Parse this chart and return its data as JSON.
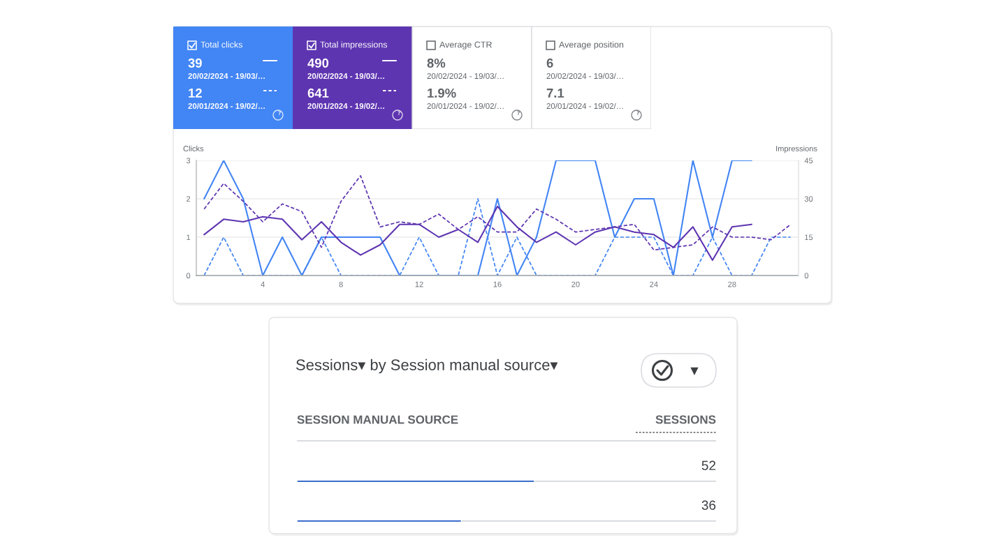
{
  "chart_data": [
    {
      "type": "other",
      "annotations": [
        "Total clicks",
        "39",
        "20/02/2024 - 19/03/…",
        "12",
        "20/01/2024 - 19/02/…",
        "Total impressions",
        "490",
        "20/02/2024 - 19/03/…",
        "641",
        "20/01/2024 - 19/02/…",
        "Average CTR",
        "8%",
        "20/02/2024 - 19/03/…",
        "1.9%",
        "20/01/2024 - 19/02/…",
        "Average position",
        "6",
        "20/02/2024 - 19/03/…",
        "7.1",
        "20/01/2024 - 19/02/…"
      ]
    },
    {
      "type": "line",
      "ylabel": "Clicks",
      "y2label": "Impressions",
      "xlim": [
        0.6,
        31.4
      ],
      "xticks": [
        4,
        8,
        12,
        16,
        20,
        24,
        28
      ],
      "ylim": [
        0,
        3
      ],
      "yticks": [
        0,
        1,
        2,
        3
      ],
      "y2lim": [
        0,
        45
      ],
      "y2ticks": [
        0,
        15,
        30,
        45
      ],
      "grid": "y",
      "series": [
        {
          "color": "#4285f4",
          "x": [
            1,
            2,
            3,
            4,
            5,
            6,
            7,
            8,
            9,
            10,
            11,
            12,
            13,
            14,
            15,
            16,
            17,
            18,
            19,
            20,
            21,
            22,
            23,
            24,
            25,
            26,
            27,
            28,
            29
          ],
          "values": [
            2,
            3,
            2,
            0,
            1,
            0,
            1,
            1,
            1,
            1,
            0,
            0,
            0,
            0,
            0,
            2,
            0,
            1,
            3,
            3,
            3,
            1,
            2,
            2,
            0,
            3,
            1,
            3,
            3
          ]
        },
        {
          "color": "#4285f4",
          "line_style": "dashed",
          "x": [
            1,
            2,
            3,
            4,
            5,
            6,
            7,
            8,
            9,
            10,
            11,
            12,
            13,
            14,
            15,
            16,
            17,
            18,
            19,
            20,
            21,
            22,
            23,
            24,
            25,
            26,
            27,
            28,
            29,
            30,
            31
          ],
          "values": [
            0,
            1,
            0,
            0,
            0,
            0,
            1,
            0,
            0,
            0,
            0,
            1,
            0,
            0,
            2,
            0,
            1,
            0,
            0,
            0,
            0,
            1,
            1,
            1,
            0,
            0,
            1,
            0,
            0,
            1,
            1
          ]
        },
        {
          "color": "#5e35b1",
          "axis": "y2",
          "x": [
            1,
            2,
            3,
            4,
            5,
            6,
            7,
            8,
            9,
            10,
            11,
            12,
            13,
            14,
            15,
            16,
            17,
            18,
            19,
            20,
            21,
            22,
            23,
            24,
            25,
            26,
            27,
            28,
            29
          ],
          "values": [
            16,
            22,
            21,
            23,
            22,
            14,
            21,
            13,
            8,
            12,
            20,
            20,
            15,
            18,
            13,
            27,
            19,
            13,
            17,
            12,
            17,
            19,
            17,
            16,
            11,
            19,
            6,
            19,
            20
          ]
        },
        {
          "color": "#5e35b1",
          "axis": "y2",
          "line_style": "dashed",
          "x": [
            1,
            2,
            3,
            4,
            5,
            6,
            7,
            8,
            9,
            10,
            11,
            12,
            13,
            14,
            15,
            16,
            17,
            18,
            19,
            20,
            21,
            22,
            23,
            24,
            25,
            26,
            27,
            28,
            29,
            30,
            31
          ],
          "values": [
            26,
            36,
            29,
            21,
            28,
            25,
            11,
            29,
            39,
            19,
            21,
            20,
            24,
            18,
            23,
            17,
            17,
            26,
            22,
            17,
            18,
            19,
            20,
            10,
            11,
            12,
            19,
            15,
            15,
            14,
            20
          ]
        }
      ]
    },
    {
      "type": "bar",
      "orientation": "horizontal",
      "title": "Sessions▾ by Session manual source▾",
      "ylabel": "SESSION MANUAL SOURCE",
      "annotations": [
        "SESSIONS"
      ],
      "categories": [
        null,
        null
      ],
      "values": [
        52,
        36
      ],
      "color": "#3a6dcc",
      "data_labels": true
    }
  ]
}
